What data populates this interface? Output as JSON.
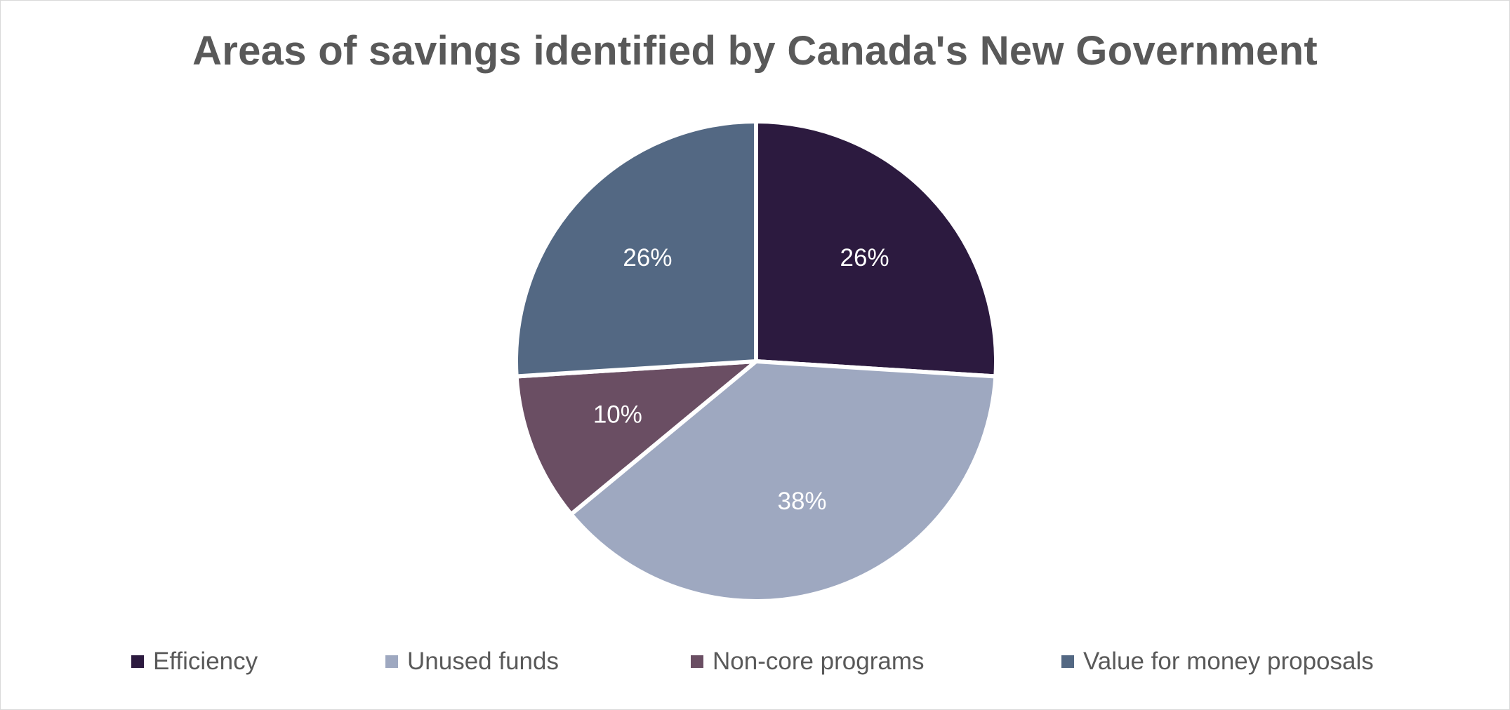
{
  "chart_data": {
    "type": "pie",
    "title": "Areas of savings identified by Canada's New Government",
    "categories": [
      "Efficiency",
      "Unused funds",
      "Non-core programs",
      "Value for money proposals"
    ],
    "values": [
      26,
      38,
      10,
      26
    ],
    "data_labels": [
      "26%",
      "38%",
      "10%",
      "26%"
    ],
    "colors": [
      "#2c1a3f",
      "#9ea8c0",
      "#6a4e63",
      "#536883"
    ],
    "label_colors": [
      "#ffffff",
      "#ffffff",
      "#ffffff",
      "#ffffff"
    ],
    "legend": {
      "position": "bottom",
      "entries": [
        "Efficiency",
        "Unused funds",
        "Non-core programs",
        "Value for money proposals"
      ]
    },
    "start_angle": "12 o'clock",
    "direction": "clockwise"
  }
}
